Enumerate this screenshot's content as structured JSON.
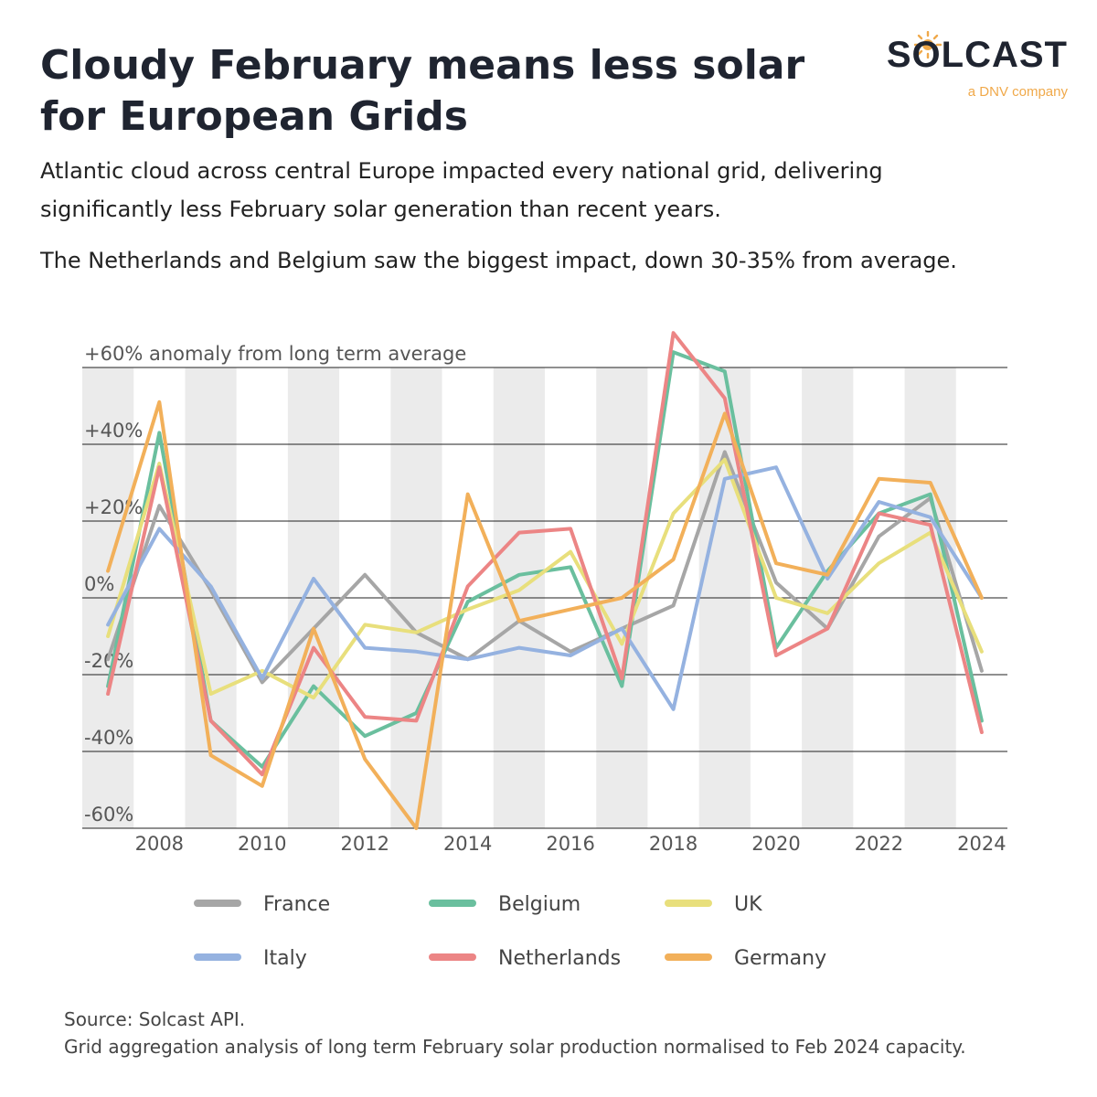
{
  "header": {
    "title": "Cloudy February means less solar for European Grids",
    "subtitle_1": "Atlantic cloud across central Europe impacted every national grid, delivering significantly less February solar generation than recent years.",
    "subtitle_2": "The Netherlands and Belgium saw the biggest impact, down 30-35% from average."
  },
  "logo": {
    "name": "SOLCAST",
    "tagline": "a DNV company",
    "accent_color": "#f0a94a"
  },
  "source": {
    "line_1": "Source: Solcast API.",
    "line_2": "Grid aggregation analysis of long term February solar production normalised to Feb 2024 capacity."
  },
  "chart_data": {
    "type": "line",
    "title": "Cloudy February means less solar for European Grids",
    "ylabel": "+60% anomaly from long term average",
    "xlabel": "",
    "ylim": [
      -60,
      60
    ],
    "xlim": [
      2006.5,
      2024.5
    ],
    "grid": true,
    "legend_position": "bottom",
    "x": [
      2007,
      2008,
      2009,
      2010,
      2011,
      2012,
      2013,
      2014,
      2015,
      2016,
      2017,
      2018,
      2019,
      2020,
      2021,
      2022,
      2023,
      2024
    ],
    "x_ticks": [
      2008,
      2010,
      2012,
      2014,
      2016,
      2018,
      2020,
      2022,
      2024
    ],
    "x_tick_labels": [
      "2008",
      "2010",
      "2012",
      "2014",
      "2016",
      "2018",
      "2020",
      "2022",
      "2024"
    ],
    "y_ticks": [
      60,
      40,
      20,
      0,
      -20,
      -40,
      -60
    ],
    "y_tick_labels": [
      "+60% anomaly from long term average",
      "+40%",
      "+20%",
      "0%",
      "-20%",
      "-40%",
      "-60%"
    ],
    "shaded_years": [
      2007,
      2009,
      2011,
      2013,
      2015,
      2017,
      2019,
      2021,
      2023
    ],
    "series": [
      {
        "name": "France",
        "color": "#a6a6a6",
        "values": [
          -16,
          24,
          2,
          -22,
          -8,
          6,
          -9,
          -16,
          -6,
          -14,
          -8,
          -2,
          38,
          4,
          -8,
          16,
          26,
          -19
        ]
      },
      {
        "name": "Belgium",
        "color": "#6abf9e",
        "values": [
          -23,
          43,
          -32,
          -44,
          -23,
          -36,
          -30,
          -1,
          6,
          8,
          -23,
          64,
          59,
          -13,
          7,
          22,
          27,
          -32
        ]
      },
      {
        "name": "UK",
        "color": "#e8df7c",
        "values": [
          -10,
          35,
          -25,
          -19,
          -26,
          -7,
          -9,
          -3,
          2,
          12,
          -12,
          22,
          36,
          0,
          -4,
          9,
          17,
          -14
        ]
      },
      {
        "name": "Italy",
        "color": "#95b2e0",
        "values": [
          -7,
          18,
          3,
          -21,
          5,
          -13,
          -14,
          -16,
          -13,
          -15,
          -8,
          -29,
          31,
          34,
          5,
          25,
          21,
          0
        ]
      },
      {
        "name": "Netherlands",
        "color": "#ec8585",
        "values": [
          -25,
          34,
          -32,
          -46,
          -13,
          -31,
          -32,
          3,
          17,
          18,
          -21,
          69,
          52,
          -15,
          -8,
          22,
          19,
          -35
        ]
      },
      {
        "name": "Germany",
        "color": "#f2b05a",
        "values": [
          7,
          51,
          -41,
          -49,
          -8,
          -42,
          -60,
          27,
          -6,
          -3,
          0,
          10,
          48,
          9,
          6,
          31,
          30,
          0
        ]
      }
    ]
  }
}
